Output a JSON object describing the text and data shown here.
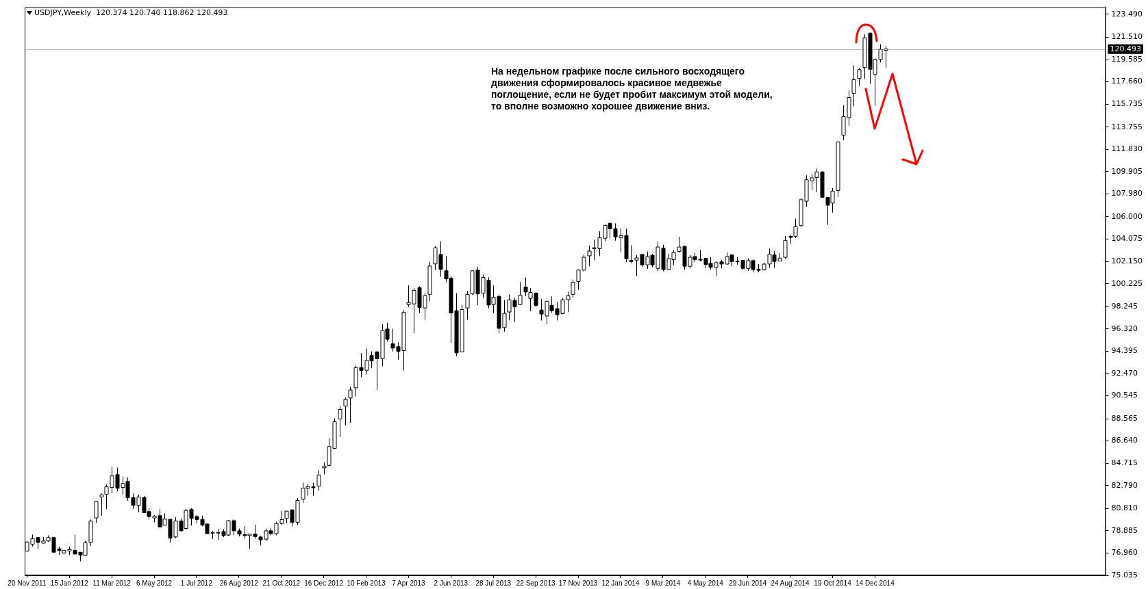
{
  "chart_data": {
    "type": "candlestick",
    "title": "USDJPY,Weekly  120.374 120.740 118.862 120.493",
    "annotations": [
      "На недельном графике после сильного восходящего движения сформировалось красивое медвежье поглощение, если не будет пробит максимум этой модели, то вполне возможно хорошее движение вниз."
    ],
    "x": [
      "2011-11-20",
      "2011-11-27",
      "2011-12-04",
      "2011-12-11",
      "2011-12-18",
      "2011-12-25",
      "2012-01-01",
      "2012-01-08",
      "2012-01-15",
      "2012-01-22",
      "2012-01-29",
      "2012-02-05",
      "2012-02-12",
      "2012-02-19",
      "2012-02-26",
      "2012-03-04",
      "2012-03-11",
      "2012-03-18",
      "2012-03-25",
      "2012-04-01",
      "2012-04-08",
      "2012-04-15",
      "2012-04-22",
      "2012-04-29",
      "2012-05-06",
      "2012-05-13",
      "2012-05-20",
      "2012-05-27",
      "2012-06-03",
      "2012-06-10",
      "2012-06-17",
      "2012-06-24",
      "2012-07-01",
      "2012-07-08",
      "2012-07-15",
      "2012-07-22",
      "2012-07-29",
      "2012-08-05",
      "2012-08-12",
      "2012-08-19",
      "2012-08-26",
      "2012-09-02",
      "2012-09-09",
      "2012-09-16",
      "2012-09-23",
      "2012-09-30",
      "2012-10-07",
      "2012-10-14",
      "2012-10-21",
      "2012-10-28",
      "2012-11-04",
      "2012-11-11",
      "2012-11-18",
      "2012-11-25",
      "2012-12-02",
      "2012-12-09",
      "2012-12-16",
      "2012-12-23",
      "2012-12-30",
      "2013-01-06",
      "2013-01-13",
      "2013-01-20",
      "2013-01-27",
      "2013-02-03",
      "2013-02-10",
      "2013-02-17",
      "2013-02-24",
      "2013-03-03",
      "2013-03-10",
      "2013-03-17",
      "2013-03-24",
      "2013-03-31",
      "2013-04-07",
      "2013-04-14",
      "2013-04-21",
      "2013-04-28",
      "2013-05-05",
      "2013-05-12",
      "2013-05-19",
      "2013-05-26",
      "2013-06-02",
      "2013-06-09",
      "2013-06-16",
      "2013-06-23",
      "2013-06-30",
      "2013-07-07",
      "2013-07-14",
      "2013-07-21",
      "2013-07-28",
      "2013-08-04",
      "2013-08-11",
      "2013-08-18",
      "2013-08-25",
      "2013-09-01",
      "2013-09-08",
      "2013-09-15",
      "2013-09-22",
      "2013-09-29",
      "2013-10-06",
      "2013-10-13",
      "2013-10-20",
      "2013-10-27",
      "2013-11-03",
      "2013-11-10",
      "2013-11-17",
      "2013-11-24",
      "2013-12-01",
      "2013-12-08",
      "2013-12-15",
      "2013-12-22",
      "2013-12-29",
      "2014-01-05",
      "2014-01-12",
      "2014-01-19",
      "2014-01-26",
      "2014-02-02",
      "2014-02-09",
      "2014-02-16",
      "2014-02-23",
      "2014-03-02",
      "2014-03-09",
      "2014-03-16",
      "2014-03-23",
      "2014-03-30",
      "2014-04-06",
      "2014-04-13",
      "2014-04-20",
      "2014-04-27",
      "2014-05-04",
      "2014-05-11",
      "2014-05-18",
      "2014-05-25",
      "2014-06-01",
      "2014-06-08",
      "2014-06-15",
      "2014-06-22",
      "2014-06-29",
      "2014-07-06",
      "2014-07-13",
      "2014-07-20",
      "2014-07-27",
      "2014-08-03",
      "2014-08-10",
      "2014-08-17",
      "2014-08-24",
      "2014-08-31",
      "2014-09-07",
      "2014-09-14",
      "2014-09-21",
      "2014-09-28",
      "2014-10-05",
      "2014-10-12",
      "2014-10-19",
      "2014-10-26",
      "2014-11-02",
      "2014-11-09",
      "2014-11-16",
      "2014-11-23",
      "2014-11-30",
      "2014-12-07",
      "2014-12-14",
      "2014-12-21",
      "2014-12-28"
    ],
    "ohlc": [
      [
        77.13,
        78.0,
        77.03,
        77.91
      ],
      [
        77.71,
        78.55,
        77.52,
        78.2
      ],
      [
        78.3,
        78.35,
        77.32,
        77.87
      ],
      [
        77.81,
        78.35,
        77.81,
        78.0
      ],
      [
        78.0,
        78.49,
        77.91,
        78.3
      ],
      [
        78.3,
        78.3,
        77.03,
        77.03
      ],
      [
        77.32,
        77.52,
        76.79,
        77.17
      ],
      [
        76.97,
        77.26,
        76.87,
        77.18
      ],
      [
        77.13,
        77.52,
        76.78,
        77.26
      ],
      [
        77.18,
        78.55,
        76.87,
        76.87
      ],
      [
        77.03,
        77.03,
        76.25,
        76.79
      ],
      [
        76.74,
        78.0,
        76.74,
        77.85
      ],
      [
        77.87,
        79.86,
        77.57,
        79.72
      ],
      [
        79.99,
        81.41,
        79.56,
        81.4
      ],
      [
        81.8,
        82.1,
        80.19,
        81.98
      ],
      [
        82.04,
        82.88,
        80.77,
        82.68
      ],
      [
        82.62,
        84.4,
        82.14,
        83.62
      ],
      [
        83.73,
        84.34,
        82.29,
        82.55
      ],
      [
        82.62,
        83.56,
        82.0,
        82.97
      ],
      [
        83.15,
        83.5,
        81.47,
        81.75
      ],
      [
        81.75,
        82.1,
        80.77,
        81.08
      ],
      [
        81.08,
        82.0,
        80.5,
        81.8
      ],
      [
        81.75,
        81.9,
        80.44,
        80.44
      ],
      [
        80.54,
        80.83,
        79.86,
        80.11
      ],
      [
        79.99,
        80.25,
        79.62,
        80.15
      ],
      [
        80.19,
        80.77,
        79.21,
        79.21
      ],
      [
        79.37,
        80.38,
        79.33,
        79.89
      ],
      [
        79.87,
        79.91,
        77.85,
        78.24
      ],
      [
        78.35,
        80.05,
        78.24,
        79.72
      ],
      [
        79.72,
        79.95,
        78.82,
        78.88
      ],
      [
        79.08,
        80.77,
        78.98,
        80.64
      ],
      [
        80.73,
        80.83,
        79.33,
        79.95
      ],
      [
        80.11,
        80.25,
        79.52,
        79.86
      ],
      [
        79.87,
        80.19,
        79.27,
        79.37
      ],
      [
        79.47,
        79.52,
        78.63,
        78.63
      ],
      [
        78.7,
        78.88,
        78.16,
        78.74
      ],
      [
        78.7,
        79.02,
        78.1,
        78.74
      ],
      [
        78.82,
        79.02,
        78.35,
        78.47
      ],
      [
        78.51,
        79.8,
        78.43,
        79.76
      ],
      [
        79.76,
        79.86,
        78.49,
        78.88
      ],
      [
        78.88,
        79.08,
        78.39,
        78.59
      ],
      [
        78.55,
        79.27,
        78.2,
        78.47
      ],
      [
        78.47,
        78.59,
        77.32,
        78.59
      ],
      [
        78.59,
        79.41,
        78.2,
        78.39
      ],
      [
        78.35,
        78.43,
        77.61,
        78.1
      ],
      [
        78.16,
        79.08,
        78.0,
        78.88
      ],
      [
        78.88,
        79.14,
        78.49,
        78.63
      ],
      [
        78.63,
        79.66,
        78.49,
        79.52
      ],
      [
        79.52,
        80.58,
        79.37,
        79.86
      ],
      [
        79.95,
        80.58,
        79.52,
        80.58
      ],
      [
        80.69,
        80.73,
        79.27,
        79.6
      ],
      [
        79.62,
        81.71,
        79.37,
        81.51
      ],
      [
        81.61,
        83.03,
        81.28,
        82.57
      ],
      [
        82.55,
        82.97,
        81.9,
        82.68
      ],
      [
        82.68,
        83.03,
        81.9,
        82.6
      ],
      [
        82.74,
        84.14,
        82.33,
        83.7
      ],
      [
        84.32,
        84.79,
        83.75,
        84.47
      ],
      [
        84.53,
        86.87,
        84.44,
        86.15
      ],
      [
        86.0,
        88.59,
        86.0,
        88.3
      ],
      [
        88.54,
        89.67,
        86.98,
        89.36
      ],
      [
        89.65,
        90.39,
        87.99,
        90.23
      ],
      [
        90.35,
        91.32,
        88.2,
        91.05
      ],
      [
        91.23,
        93.16,
        90.49,
        92.98
      ],
      [
        92.98,
        94.23,
        92.14,
        92.73
      ],
      [
        92.75,
        94.62,
        92.38,
        93.6
      ],
      [
        94.03,
        94.38,
        92.92,
        93.56
      ],
      [
        94.33,
        94.42,
        91.03,
        93.74
      ],
      [
        93.74,
        96.72,
        93.08,
        96.2
      ],
      [
        96.31,
        96.86,
        95.26,
        95.42
      ],
      [
        95.03,
        96.33,
        94.38,
        94.66
      ],
      [
        94.79,
        95.16,
        93.66,
        94.38
      ],
      [
        94.44,
        97.93,
        92.73,
        97.74
      ],
      [
        98.42,
        100.08,
        98.22,
        98.59
      ],
      [
        98.48,
        99.84,
        95.94,
        99.65
      ],
      [
        99.88,
        100.0,
        97.7,
        98.17
      ],
      [
        98.13,
        99.41,
        97.11,
        99.18
      ],
      [
        99.3,
        102.12,
        98.71,
        101.75
      ],
      [
        101.93,
        103.45,
        101.4,
        103.33
      ],
      [
        102.75,
        103.88,
        100.82,
        101.46
      ],
      [
        101.34,
        102.63,
        100.33,
        100.64
      ],
      [
        100.7,
        100.88,
        95.12,
        97.7
      ],
      [
        97.89,
        99.41,
        93.96,
        94.25
      ],
      [
        94.33,
        98.42,
        94.33,
        97.99
      ],
      [
        98.13,
        99.59,
        97.11,
        99.3
      ],
      [
        99.34,
        101.36,
        99.26,
        101.34
      ],
      [
        101.4,
        101.64,
        98.38,
        99.34
      ],
      [
        99.41,
        101.01,
        98.97,
        100.76
      ],
      [
        100.52,
        100.78,
        98.09,
        98.38
      ],
      [
        98.42,
        100.08,
        97.7,
        99.06
      ],
      [
        99.12,
        99.3,
        95.94,
        96.37
      ],
      [
        96.43,
        98.81,
        96.08,
        97.66
      ],
      [
        97.78,
        99.3,
        97.05,
        98.83
      ],
      [
        98.77,
        99.0,
        96.92,
        98.24
      ],
      [
        98.42,
        100.37,
        98.42,
        99.24
      ],
      [
        99.94,
        100.76,
        99.16,
        99.51
      ],
      [
        98.95,
        99.84,
        97.85,
        99.47
      ],
      [
        99.41,
        99.49,
        98.22,
        98.34
      ],
      [
        97.95,
        98.91,
        97.05,
        97.6
      ],
      [
        97.43,
        98.71,
        96.72,
        98.71
      ],
      [
        98.36,
        99.12,
        97.7,
        97.89
      ],
      [
        98.07,
        98.67,
        97.05,
        97.54
      ],
      [
        97.64,
        99.0,
        97.58,
        98.83
      ],
      [
        98.85,
        99.53,
        97.76,
        99.18
      ],
      [
        99.3,
        100.58,
        99.02,
        100.35
      ],
      [
        100.41,
        101.46,
        99.69,
        101.4
      ],
      [
        101.4,
        102.73,
        101.27,
        102.51
      ],
      [
        102.63,
        103.51,
        101.73,
        103.04
      ],
      [
        103.25,
        104.03,
        102.26,
        103.33
      ],
      [
        103.25,
        104.75,
        102.61,
        104.21
      ],
      [
        104.15,
        105.34,
        103.9,
        105.26
      ],
      [
        105.44,
        105.53,
        104.17,
        104.97
      ],
      [
        104.97,
        105.44,
        103.94,
        104.25
      ],
      [
        104.21,
        105.01,
        102.96,
        104.38
      ],
      [
        104.38,
        104.97,
        102.08,
        102.38
      ],
      [
        102.22,
        103.55,
        101.99,
        102.14
      ],
      [
        102.26,
        102.71,
        100.86,
        102.45
      ],
      [
        102.75,
        102.81,
        101.69,
        101.85
      ],
      [
        101.85,
        103.0,
        101.5,
        102.57
      ],
      [
        102.68,
        102.8,
        101.65,
        101.85
      ],
      [
        101.55,
        103.87,
        101.3,
        103.39
      ],
      [
        103.29,
        103.58,
        101.3,
        101.44
      ],
      [
        101.44,
        102.82,
        101.4,
        102.39
      ],
      [
        102.31,
        103.11,
        101.83,
        102.92
      ],
      [
        103.0,
        104.28,
        102.9,
        103.39
      ],
      [
        103.44,
        103.5,
        101.44,
        101.73
      ],
      [
        101.73,
        102.7,
        101.55,
        102.51
      ],
      [
        102.57,
        102.86,
        102.08,
        102.31
      ],
      [
        102.33,
        103.15,
        102.14,
        102.27
      ],
      [
        102.41,
        102.41,
        101.55,
        101.88
      ],
      [
        101.98,
        102.53,
        101.44,
        101.63
      ],
      [
        101.63,
        102.18,
        100.91,
        102.04
      ],
      [
        102.12,
        102.28,
        101.55,
        101.92
      ],
      [
        101.92,
        102.92,
        101.85,
        102.57
      ],
      [
        102.7,
        102.8,
        101.73,
        102.14
      ],
      [
        102.14,
        102.53,
        101.85,
        102.18
      ],
      [
        102.24,
        102.28,
        101.44,
        101.55
      ],
      [
        101.55,
        102.41,
        101.34,
        102.22
      ],
      [
        102.22,
        102.33,
        101.2,
        101.44
      ],
      [
        101.46,
        101.92,
        101.2,
        101.38
      ],
      [
        101.44,
        102.02,
        101.34,
        101.92
      ],
      [
        101.92,
        103.25,
        101.59,
        102.76
      ],
      [
        102.7,
        103.05,
        101.59,
        102.14
      ],
      [
        102.18,
        102.86,
        102.14,
        102.43
      ],
      [
        102.51,
        104.36,
        102.37,
        103.97
      ],
      [
        104.32,
        104.42,
        103.64,
        104.22
      ],
      [
        104.32,
        105.84,
        104.17,
        105.14
      ],
      [
        105.24,
        107.64,
        105.11,
        107.48
      ],
      [
        107.35,
        109.59,
        106.86,
        109.2
      ],
      [
        109.1,
        109.69,
        108.32,
        109.36
      ],
      [
        109.39,
        110.17,
        108.13,
        109.88
      ],
      [
        109.88,
        109.94,
        107.64,
        107.68
      ],
      [
        107.68,
        107.68,
        105.3,
        107.0
      ],
      [
        107.19,
        108.48,
        106.37,
        108.22
      ],
      [
        108.28,
        112.55,
        107.7,
        112.46
      ],
      [
        113.04,
        115.63,
        112.61,
        114.66
      ],
      [
        114.56,
        116.9,
        113.88,
        116.31
      ],
      [
        116.67,
        119.1,
        115.54,
        117.84
      ],
      [
        117.95,
        118.85,
        117.29,
        118.71
      ],
      [
        118.89,
        121.77,
        117.93,
        121.46
      ],
      [
        121.87,
        121.91,
        117.48,
        118.75
      ],
      [
        118.3,
        119.69,
        115.59,
        119.59
      ],
      [
        119.59,
        120.9,
        119.34,
        120.47
      ],
      [
        120.374,
        120.74,
        118.862,
        120.493
      ]
    ],
    "xlim": [
      "2011-11-17",
      "2015-10-15"
    ],
    "xticks": [
      {
        "value": "2011-11-20",
        "label": "20 Nov 2011"
      },
      {
        "value": "2012-01-15",
        "label": "15 Jan 2012"
      },
      {
        "value": "2012-03-11",
        "label": "11 Mar 2012"
      },
      {
        "value": "2012-05-06",
        "label": "6 May 2012"
      },
      {
        "value": "2012-07-01",
        "label": "1 Jul 2012"
      },
      {
        "value": "2012-08-26",
        "label": "26 Aug 2012"
      },
      {
        "value": "2012-10-21",
        "label": "21 Oct 2012"
      },
      {
        "value": "2012-12-16",
        "label": "16 Dec 2012"
      },
      {
        "value": "2013-02-10",
        "label": "10 Feb 2013"
      },
      {
        "value": "2013-04-07",
        "label": "7 Apr 2013"
      },
      {
        "value": "2013-06-02",
        "label": "2 Jun 2013"
      },
      {
        "value": "2013-07-28",
        "label": "28 Jul 2013"
      },
      {
        "value": "2013-09-22",
        "label": "22 Sep 2013"
      },
      {
        "value": "2013-11-17",
        "label": "17 Nov 2013"
      },
      {
        "value": "2014-01-12",
        "label": "12 Jan 2014"
      },
      {
        "value": "2014-03-09",
        "label": "9 Mar 2014"
      },
      {
        "value": "2014-05-04",
        "label": "4 May 2014"
      },
      {
        "value": "2014-06-29",
        "label": "29 Jun 2014"
      },
      {
        "value": "2014-08-24",
        "label": "24 Aug 2014"
      },
      {
        "value": "2014-10-19",
        "label": "19 Oct 2014"
      },
      {
        "value": "2014-12-14",
        "label": "14 Dec 2014"
      }
    ],
    "ylim": [
      75.035,
      124.1
    ],
    "yticks": [
      {
        "value": 75.035,
        "label": "75.035"
      },
      {
        "value": 76.96,
        "label": "76.960"
      },
      {
        "value": 78.885,
        "label": "78.885"
      },
      {
        "value": 80.81,
        "label": "80.810"
      },
      {
        "value": 82.79,
        "label": "82.790"
      },
      {
        "value": 84.715,
        "label": "84.715"
      },
      {
        "value": 86.64,
        "label": "86.640"
      },
      {
        "value": 88.565,
        "label": "88.565"
      },
      {
        "value": 90.545,
        "label": "90.545"
      },
      {
        "value": 92.47,
        "label": "92.470"
      },
      {
        "value": 94.395,
        "label": "94.395"
      },
      {
        "value": 96.32,
        "label": "96.320"
      },
      {
        "value": 98.245,
        "label": "98.245"
      },
      {
        "value": 100.225,
        "label": "100.225"
      },
      {
        "value": 102.15,
        "label": "102.150"
      },
      {
        "value": 104.075,
        "label": "104.075"
      },
      {
        "value": 106.0,
        "label": "106.000"
      },
      {
        "value": 107.98,
        "label": "107.980"
      },
      {
        "value": 109.905,
        "label": "109.905"
      },
      {
        "value": 111.83,
        "label": "111.830"
      },
      {
        "value": 113.755,
        "label": "113.755"
      },
      {
        "value": 115.735,
        "label": "115.735"
      },
      {
        "value": 117.66,
        "label": "117.660"
      },
      {
        "value": 119.585,
        "label": "119.585"
      },
      {
        "value": 121.51,
        "label": "121.510"
      },
      {
        "value": 123.49,
        "label": "123.490"
      }
    ],
    "ref_lines": [
      {
        "axis": "y",
        "value": 120.493,
        "label": "120.493",
        "color": "#c0c0c0"
      }
    ]
  }
}
